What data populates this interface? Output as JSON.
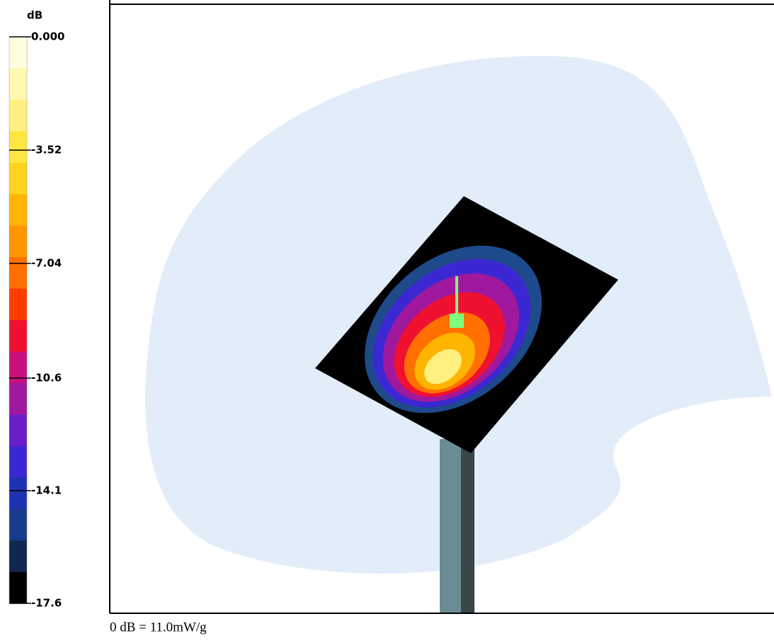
{
  "chart_data": {
    "type": "surface",
    "colorbar": {
      "title": "dB",
      "lim": [
        -17.6,
        0
      ],
      "ticks": [
        {
          "value": 0,
          "label": "0.000"
        },
        -3.52,
        -7.04,
        -10.6,
        -14.1,
        -17.6
      ],
      "colors": [
        "#fffde0",
        "#fff8b0",
        "#fff080",
        "#ffe640",
        "#ffd21e",
        "#ffb400",
        "#ff9600",
        "#ff7000",
        "#ff3c00",
        "#f01030",
        "#c8107c",
        "#a0189e",
        "#6a1ec8",
        "#3c28d2",
        "#1e32b4",
        "#183c8c",
        "#102850",
        "#000000"
      ]
    },
    "note": "0 dB = 11.0mW/g"
  }
}
